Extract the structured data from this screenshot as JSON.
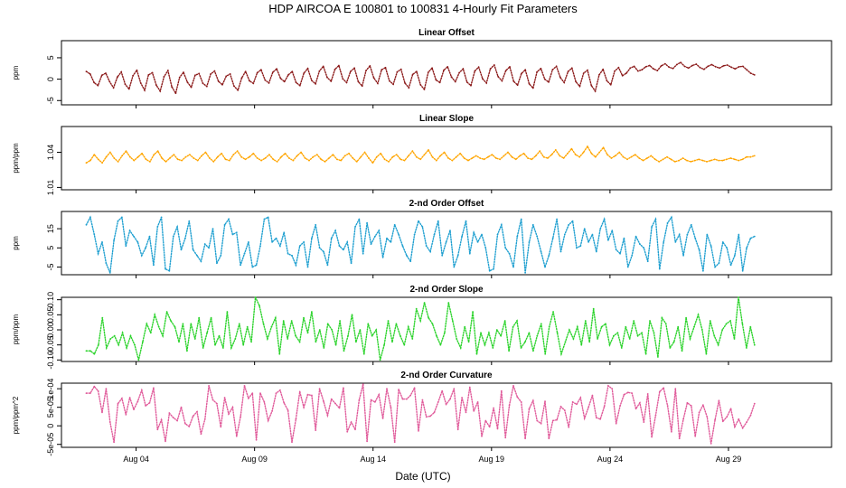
{
  "figure": {
    "title": "HDP   AIRCOA E   100801 to 100831   4-Hourly Fit Parameters",
    "xlabel": "Date (UTC)",
    "x_ticks": [
      "Aug 04",
      "Aug 09",
      "Aug 14",
      "Aug 19",
      "Aug 24",
      "Aug 29"
    ]
  },
  "chart_data": [
    {
      "type": "line",
      "title": "Linear Offset",
      "ylabel": "ppm",
      "ylim": [
        -6,
        9
      ],
      "yticks": [
        "-5",
        "0",
        "5"
      ],
      "color": "#8b1a1a",
      "xlim": [
        0,
        32.5
      ],
      "values": [
        1.8,
        1.2,
        -0.8,
        -1.5,
        0.9,
        1.4,
        -0.6,
        -2.0,
        0.5,
        1.7,
        -1.2,
        -2.3,
        0.8,
        2.1,
        -0.9,
        -2.6,
        1.0,
        1.5,
        -1.4,
        -2.8,
        0.6,
        2.0,
        -1.8,
        -3.3,
        0.4,
        1.6,
        -0.7,
        -1.9,
        0.9,
        1.3,
        -1.0,
        -1.7,
        1.2,
        1.9,
        -0.5,
        -1.3,
        0.7,
        1.2,
        -1.6,
        -2.6,
        0.3,
        1.8,
        -0.4,
        -1.0,
        1.5,
        2.2,
        -0.2,
        -0.9,
        1.6,
        2.4,
        0.2,
        -0.6,
        1.0,
        1.8,
        -0.8,
        -1.5,
        1.4,
        2.5,
        -0.3,
        -1.1,
        1.9,
        3.0,
        0.4,
        -0.5,
        2.3,
        3.2,
        0.1,
        -0.8,
        1.8,
        2.6,
        -0.6,
        -1.6,
        2.0,
        3.1,
        0.3,
        -1.0,
        2.2,
        2.7,
        -0.4,
        -1.2,
        1.7,
        2.3,
        -0.9,
        -2.0,
        1.1,
        1.8,
        -1.3,
        -2.4,
        1.6,
        2.6,
        -0.2,
        -0.8,
        2.1,
        2.9,
        0.5,
        -0.6,
        1.5,
        2.4,
        -0.7,
        -1.5,
        1.9,
        2.8,
        0.1,
        -0.9,
        2.4,
        3.3,
        0.6,
        -0.4,
        2.0,
        2.9,
        -0.5,
        -1.4,
        1.3,
        2.2,
        -1.1,
        -2.1,
        1.7,
        2.5,
        0.0,
        -0.7,
        2.2,
        3.0,
        0.4,
        -0.8,
        1.8,
        2.6,
        -0.6,
        -1.7,
        1.4,
        2.1,
        -1.5,
        -2.8,
        1.0,
        2.3,
        -0.4,
        -1.3,
        1.9,
        2.7,
        0.8,
        1.4,
        2.6,
        3.0,
        1.9,
        2.2,
        2.9,
        3.2,
        2.4,
        2.0,
        3.1,
        3.6,
        2.8,
        2.5,
        3.4,
        3.9,
        3.0,
        2.6,
        3.2,
        3.5,
        2.7,
        2.3,
        3.0,
        3.4,
        2.9,
        2.6,
        3.1,
        3.3,
        2.8,
        2.4,
        2.9,
        3.0,
        2.2,
        1.4,
        1.0
      ],
      "id": "linear-offset"
    },
    {
      "type": "line",
      "title": "Linear Slope",
      "ylabel": "ppm/ppm",
      "ylim": [
        1.008,
        1.062
      ],
      "yticks": [
        "1.01",
        "1.04"
      ],
      "color": "#ffa500",
      "xlim": [
        0,
        32.5
      ],
      "values": [
        1.031,
        1.033,
        1.038,
        1.034,
        1.031,
        1.036,
        1.04,
        1.035,
        1.032,
        1.037,
        1.041,
        1.036,
        1.033,
        1.036,
        1.039,
        1.034,
        1.032,
        1.038,
        1.041,
        1.035,
        1.032,
        1.035,
        1.038,
        1.034,
        1.033,
        1.036,
        1.038,
        1.035,
        1.033,
        1.037,
        1.04,
        1.035,
        1.032,
        1.036,
        1.039,
        1.034,
        1.033,
        1.038,
        1.041,
        1.036,
        1.034,
        1.036,
        1.039,
        1.035,
        1.033,
        1.035,
        1.038,
        1.034,
        1.032,
        1.036,
        1.039,
        1.035,
        1.033,
        1.037,
        1.04,
        1.035,
        1.033,
        1.036,
        1.038,
        1.034,
        1.032,
        1.035,
        1.038,
        1.034,
        1.033,
        1.037,
        1.039,
        1.035,
        1.032,
        1.036,
        1.04,
        1.035,
        1.031,
        1.036,
        1.039,
        1.034,
        1.032,
        1.036,
        1.038,
        1.034,
        1.033,
        1.037,
        1.041,
        1.036,
        1.034,
        1.038,
        1.042,
        1.036,
        1.033,
        1.037,
        1.04,
        1.035,
        1.033,
        1.036,
        1.039,
        1.035,
        1.033,
        1.035,
        1.037,
        1.035,
        1.034,
        1.036,
        1.038,
        1.035,
        1.034,
        1.037,
        1.04,
        1.036,
        1.034,
        1.037,
        1.039,
        1.035,
        1.034,
        1.037,
        1.041,
        1.036,
        1.035,
        1.038,
        1.042,
        1.037,
        1.035,
        1.039,
        1.043,
        1.038,
        1.036,
        1.04,
        1.045,
        1.039,
        1.036,
        1.04,
        1.044,
        1.038,
        1.035,
        1.037,
        1.04,
        1.036,
        1.034,
        1.036,
        1.038,
        1.035,
        1.033,
        1.035,
        1.037,
        1.034,
        1.032,
        1.034,
        1.036,
        1.034,
        1.032,
        1.033,
        1.035,
        1.033,
        1.032,
        1.033,
        1.034,
        1.033,
        1.032,
        1.033,
        1.034,
        1.033,
        1.033,
        1.034,
        1.035,
        1.034,
        1.033,
        1.034,
        1.036,
        1.036,
        1.037
      ],
      "id": "linear-slope"
    },
    {
      "type": "line",
      "title": "2-nd Order Offset",
      "ylabel": "ppm",
      "ylim": [
        -9,
        24
      ],
      "yticks": [
        "-5",
        "5",
        "15"
      ],
      "color": "#1e9fd0",
      "xlim": [
        0,
        32.5
      ],
      "values": [
        17,
        21,
        12,
        2,
        8,
        -3,
        -8,
        9,
        19,
        21,
        6,
        14,
        11,
        8,
        1,
        5,
        11,
        -4,
        16,
        21,
        -6,
        -7,
        11,
        16,
        4,
        10,
        19,
        4,
        1,
        -2,
        7,
        5,
        15,
        -3,
        1,
        17,
        20,
        12,
        13,
        -4,
        2,
        8,
        -5,
        -4,
        6,
        20,
        21,
        8,
        10,
        6,
        13,
        2,
        1,
        -4,
        6,
        8,
        -5,
        10,
        17,
        5,
        3,
        -4,
        10,
        14,
        6,
        4,
        8,
        -3,
        16,
        20,
        2,
        18,
        7,
        11,
        14,
        0,
        10,
        8,
        17,
        12,
        6,
        1,
        -2,
        12,
        19,
        16,
        6,
        3,
        12,
        19,
        1,
        8,
        14,
        -5,
        1,
        11,
        19,
        2,
        13,
        8,
        12,
        5,
        -7,
        -6,
        12,
        17,
        5,
        2,
        -5,
        11,
        20,
        -8,
        8,
        17,
        11,
        3,
        -5,
        1,
        10,
        20,
        3,
        12,
        17,
        19,
        5,
        6,
        15,
        8,
        12,
        3,
        15,
        20,
        9,
        14,
        4,
        2,
        10,
        -5,
        1,
        11,
        7,
        5,
        -2,
        16,
        20,
        -6,
        8,
        18,
        21,
        8,
        12,
        1,
        12,
        17,
        10,
        4,
        -7,
        12,
        6,
        -5,
        -3,
        8,
        5,
        -4,
        1,
        12,
        -7,
        5,
        10,
        11
      ],
      "id": "second-order-offset"
    },
    {
      "type": "line",
      "title": "2-nd Order Slope",
      "ylabel": "ppm/ppm",
      "ylim": [
        -0.105,
        0.108
      ],
      "yticks": [
        "-0.10",
        "-0.05",
        "0.00",
        "0.05",
        "0.10"
      ],
      "color": "#2bd32b",
      "xlim": [
        0,
        32.5
      ],
      "values": [
        -0.07,
        -0.07,
        -0.08,
        -0.05,
        0.04,
        -0.06,
        -0.03,
        -0.02,
        -0.05,
        -0.01,
        -0.06,
        -0.02,
        -0.05,
        -0.1,
        -0.04,
        0.02,
        -0.01,
        0.05,
        0.01,
        -0.02,
        0.06,
        0.03,
        0.01,
        -0.04,
        0.02,
        -0.07,
        0.02,
        -0.03,
        0.04,
        -0.06,
        -0.01,
        0.04,
        -0.05,
        -0.02,
        -0.06,
        0.06,
        -0.06,
        -0.03,
        0.02,
        -0.05,
        0.01,
        -0.04,
        0.11,
        0.08,
        0.02,
        -0.03,
        0.01,
        0.04,
        -0.08,
        0.03,
        -0.03,
        0.03,
        -0.02,
        -0.04,
        0.04,
        -0.01,
        0.06,
        -0.04,
        0.0,
        -0.06,
        0.02,
        0.0,
        -0.05,
        0.03,
        -0.07,
        -0.02,
        0.05,
        -0.04,
        0.0,
        -0.08,
        0.02,
        -0.02,
        0.0,
        -0.1,
        -0.05,
        0.03,
        -0.04,
        0.02,
        -0.02,
        -0.05,
        0.01,
        -0.03,
        0.07,
        0.03,
        0.09,
        0.04,
        0.02,
        -0.02,
        -0.05,
        -0.01,
        0.09,
        0.03,
        -0.03,
        -0.06,
        0.01,
        -0.04,
        0.06,
        -0.08,
        -0.01,
        -0.05,
        -0.01,
        -0.06,
        0.0,
        -0.02,
        0.03,
        -0.07,
        0.01,
        0.03,
        -0.06,
        -0.04,
        -0.01,
        -0.07,
        -0.02,
        0.02,
        -0.08,
        0.01,
        0.06,
        -0.01,
        -0.08,
        -0.04,
        0.0,
        -0.03,
        0.01,
        -0.05,
        0.03,
        -0.04,
        0.07,
        -0.03,
        0.01,
        0.02,
        -0.05,
        -0.02,
        -0.01,
        -0.06,
        0.01,
        -0.03,
        0.03,
        -0.02,
        -0.01,
        -0.08,
        0.03,
        -0.01,
        -0.09,
        0.04,
        0.02,
        -0.06,
        -0.04,
        0.01,
        -0.07,
        0.04,
        -0.03,
        0.01,
        0.05,
        0.0,
        -0.08,
        0.03,
        -0.02,
        -0.05,
        0.0,
        0.02,
        0.03,
        -0.03,
        0.11,
        0.02,
        -0.06,
        0.01,
        -0.05
      ],
      "id": "second-order-slope"
    },
    {
      "type": "line",
      "title": "2-nd Order Curvature",
      "ylabel": "ppm/ppm^2",
      "ylim": [
        -5.8e-05,
        0.000115
      ],
      "yticks": [
        "-5e-05",
        "0",
        "5e-05",
        "1e-04"
      ],
      "color": "#e05a9a",
      "xlim": [
        0,
        32.5
      ],
      "values": [
        8.8e-05,
        8.8e-05,
        0.000106,
        9.4e-05,
        3.6e-05,
        0.0001,
        1e-05,
        -4.4e-05,
        6e-05,
        7.4e-05,
        3e-05,
        7.6e-05,
        4.4e-05,
        6.6e-05,
        9.6e-05,
        5.4e-05,
        6.2e-05,
        0.000102,
        -1e-05,
        1.6e-05,
        -4.2e-05,
        3.4e-05,
        2.2e-05,
        1.4e-05,
        5e-05,
        6e-06,
        -2e-06,
        2.6e-05,
        3.8e-05,
        -2.2e-05,
        1.8e-05,
        0.000108,
        7e-05,
        6e-05,
        -3e-06,
        7.6e-05,
        3.2e-05,
        5e-05,
        -2.8e-05,
        2.4e-05,
        0.000108,
        7.4e-05,
        8.8e-05,
        -3.8e-05,
        8.8e-05,
        6.4e-05,
        1.4e-05,
        4e-05,
        8.8e-05,
        9.6e-05,
        6.2e-05,
        4.2e-05,
        -4.4e-05,
        1.8e-05,
        9.2e-05,
        5e-05,
        8.4e-05,
        8.2e-05,
        -1.2e-05,
        0.0001,
        6.6e-05,
        2.8e-05,
        7.2e-05,
        6e-05,
        4.8e-05,
        0.000102,
        -1.6e-05,
        1e-05,
        -1e-05,
        7e-05,
        0.000112,
        -4.2e-05,
        7e-05,
        6.4e-05,
        8.4e-05,
        2e-05,
        0.0001,
        5e-05,
        -4.4e-05,
        9.8e-05,
        7.2e-05,
        7.2e-05,
        8.2e-05,
        0.000102,
        -1.4e-05,
        7e-05,
        2.4e-05,
        2.6e-05,
        3.6e-05,
        6.4e-05,
        9.4e-05,
        5.8e-05,
        7.2e-05,
        0.0001,
        -1e-05,
        7.6e-05,
        3.6e-05,
        0.000104,
        4e-05,
        6.4e-05,
        -2.8e-05,
        1.4e-05,
        -3e-06,
        4.8e-05,
        -8e-06,
        9.4e-05,
        -3.2e-05,
        5.6e-05,
        0.000108,
        7.8e-05,
        6.4e-05,
        -3.4e-05,
        4.6e-05,
        6.8e-05,
        1.4e-05,
        6e-06,
        6.6e-05,
        -3.4e-05,
        1.4e-05,
        1.6e-05,
        5.2e-05,
        4.2e-05,
        -4e-06,
        6.4e-05,
        5.8e-05,
        7.6e-05,
        2e-05,
        5e-05,
        8.2e-05,
        2.2e-05,
        1.8e-05,
        5.2e-05,
        0.000108,
        0.0001,
        6e-06,
        5.4e-05,
        8.4e-05,
        9e-05,
        8.8e-05,
        4.6e-05,
        6.2e-05,
        1e-05,
        8.6e-05,
        -3e-05,
        2.8e-05,
        9.2e-05,
        0.000102,
        5.4e-05,
        -1.6e-05,
        0.0001,
        -3.4e-05,
        1.8e-05,
        6.2e-05,
        5.4e-05,
        -2.8e-05,
        3.6e-05,
        5.6e-05,
        2.4e-05,
        -4.8e-05,
        1.6e-05,
        6.8e-05,
        1.2e-05,
        2.4e-05,
        4.6e-05,
        -3e-06,
        1.8e-05,
        -6e-06,
        1e-05,
        2.8e-05,
        6e-05
      ],
      "id": "second-order-curvature"
    }
  ]
}
